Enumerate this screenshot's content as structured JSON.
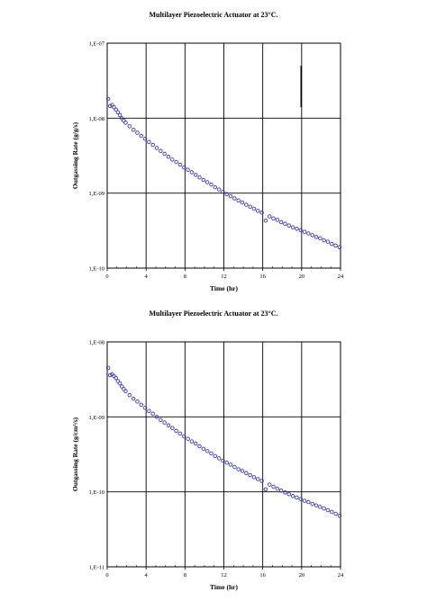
{
  "chart_data": [
    {
      "type": "scatter",
      "title": "Multilayer Piezoelectric Actuator at 23°C.",
      "xlabel": "Time (hr)",
      "ylabel": "Outgassing Rate (g/g/s)",
      "xlim": [
        0,
        24
      ],
      "ylim": [
        1e-10,
        1e-07
      ],
      "y_scale": "log",
      "grid": true,
      "x_ticks": [
        "0",
        "4",
        "8",
        "12",
        "16",
        "20",
        "24"
      ],
      "y_ticks": [
        "1,E-10",
        "1,E-09",
        "1,E-08",
        "1,E-07"
      ],
      "marker_color": "#3b3bb0",
      "series": [
        {
          "x": [
            0.1,
            0.3,
            0.5,
            0.7,
            0.9,
            1.1,
            1.3,
            1.5,
            1.7,
            1.9,
            2.3,
            2.7,
            3.1,
            3.5,
            3.9,
            4.3,
            4.7,
            5.1,
            5.5,
            5.9,
            6.3,
            6.7,
            7.1,
            7.5,
            7.9,
            8.3,
            8.7,
            9.1,
            9.5,
            9.9,
            10.3,
            10.7,
            11.1,
            11.5,
            11.9,
            12.3,
            12.7,
            13.1,
            13.5,
            13.9,
            14.3,
            14.7,
            15.1,
            15.5,
            15.9,
            16.3,
            16.7,
            17.1,
            17.5,
            17.9,
            18.3,
            18.7,
            19.1,
            19.5,
            19.9,
            20.3,
            20.7,
            21.1,
            21.5,
            21.9,
            22.3,
            22.7,
            23.1,
            23.5,
            23.9
          ],
          "y": [
            1.8e-08,
            1.45e-08,
            1.5e-08,
            1.4e-08,
            1.3e-08,
            1.2e-08,
            1.1e-08,
            1e-08,
            9.3e-09,
            8.7e-09,
            7.8e-09,
            7e-09,
            6.4e-09,
            5.8e-09,
            5.3e-09,
            4.8e-09,
            4.4e-09,
            4e-09,
            3.65e-09,
            3.35e-09,
            3.05e-09,
            2.8e-09,
            2.6e-09,
            2.4e-09,
            2.2e-09,
            2.05e-09,
            1.9e-09,
            1.75e-09,
            1.62e-09,
            1.5e-09,
            1.4e-09,
            1.3e-09,
            1.2e-09,
            1.12e-09,
            1.04e-09,
            9.7e-10,
            9.1e-10,
            8.5e-10,
            8e-10,
            7.5e-10,
            7e-10,
            6.6e-10,
            6.2e-10,
            5.8e-10,
            5.5e-10,
            4.3e-10,
            4.9e-10,
            4.6e-10,
            4.4e-10,
            4.1e-10,
            3.9e-10,
            3.7e-10,
            3.5e-10,
            3.35e-10,
            3.2e-10,
            3.05e-10,
            2.9e-10,
            2.75e-10,
            2.6e-10,
            2.5e-10,
            2.35e-10,
            2.25e-10,
            2.1e-10,
            2e-10,
            1.9e-10
          ]
        }
      ],
      "annotation_segment": {
        "x": 20,
        "y_from": 1.4e-08,
        "y_to": 5e-08
      }
    },
    {
      "type": "scatter",
      "title": "Multilayer Piezoelectric Actuator at 23°C.",
      "xlabel": "Time (hr)",
      "ylabel": "Outgassing Rate (g/cm²/s)",
      "xlim": [
        0,
        24
      ],
      "ylim": [
        1e-11,
        1e-08
      ],
      "y_scale": "log",
      "grid": true,
      "x_ticks": [
        "0",
        "4",
        "8",
        "12",
        "16",
        "20",
        "24"
      ],
      "y_ticks": [
        "1,E-11",
        "1,E-10",
        "1,E-09",
        "1,E-08"
      ],
      "marker_color": "#3b3bb0",
      "series": [
        {
          "x": [
            0.1,
            0.3,
            0.5,
            0.7,
            0.9,
            1.1,
            1.3,
            1.5,
            1.7,
            1.9,
            2.3,
            2.7,
            3.1,
            3.5,
            3.9,
            4.3,
            4.7,
            5.1,
            5.5,
            5.9,
            6.3,
            6.7,
            7.1,
            7.5,
            7.9,
            8.3,
            8.7,
            9.1,
            9.5,
            9.9,
            10.3,
            10.7,
            11.1,
            11.5,
            11.9,
            12.3,
            12.7,
            13.1,
            13.5,
            13.9,
            14.3,
            14.7,
            15.1,
            15.5,
            15.9,
            16.3,
            16.7,
            17.1,
            17.5,
            17.9,
            18.3,
            18.7,
            19.1,
            19.5,
            19.9,
            20.3,
            20.7,
            21.1,
            21.5,
            21.9,
            22.3,
            22.7,
            23.1,
            23.5,
            23.9
          ],
          "y": [
            4.5e-09,
            3.6e-09,
            3.7e-09,
            3.5e-09,
            3.3e-09,
            3e-09,
            2.8e-09,
            2.55e-09,
            2.35e-09,
            2.2e-09,
            1.95e-09,
            1.75e-09,
            1.6e-09,
            1.45e-09,
            1.32e-09,
            1.2e-09,
            1.1e-09,
            1e-09,
            9.1e-10,
            8.4e-10,
            7.7e-10,
            7.1e-10,
            6.5e-10,
            6e-10,
            5.5e-10,
            5.1e-10,
            4.7e-10,
            4.4e-10,
            4.05e-10,
            3.75e-10,
            3.5e-10,
            3.25e-10,
            3e-10,
            2.8e-10,
            2.6e-10,
            2.45e-10,
            2.3e-10,
            2.15e-10,
            2e-10,
            1.9e-10,
            1.78e-10,
            1.67e-10,
            1.57e-10,
            1.48e-10,
            1.4e-10,
            1.08e-10,
            1.25e-10,
            1.17e-10,
            1.1e-10,
            1.04e-10,
            9.8e-11,
            9.3e-11,
            8.8e-11,
            8.4e-11,
            8e-11,
            7.6e-11,
            7.3e-11,
            6.9e-11,
            6.6e-11,
            6.3e-11,
            6e-11,
            5.7e-11,
            5.4e-11,
            5.1e-11,
            4.8e-11
          ]
        }
      ]
    }
  ]
}
